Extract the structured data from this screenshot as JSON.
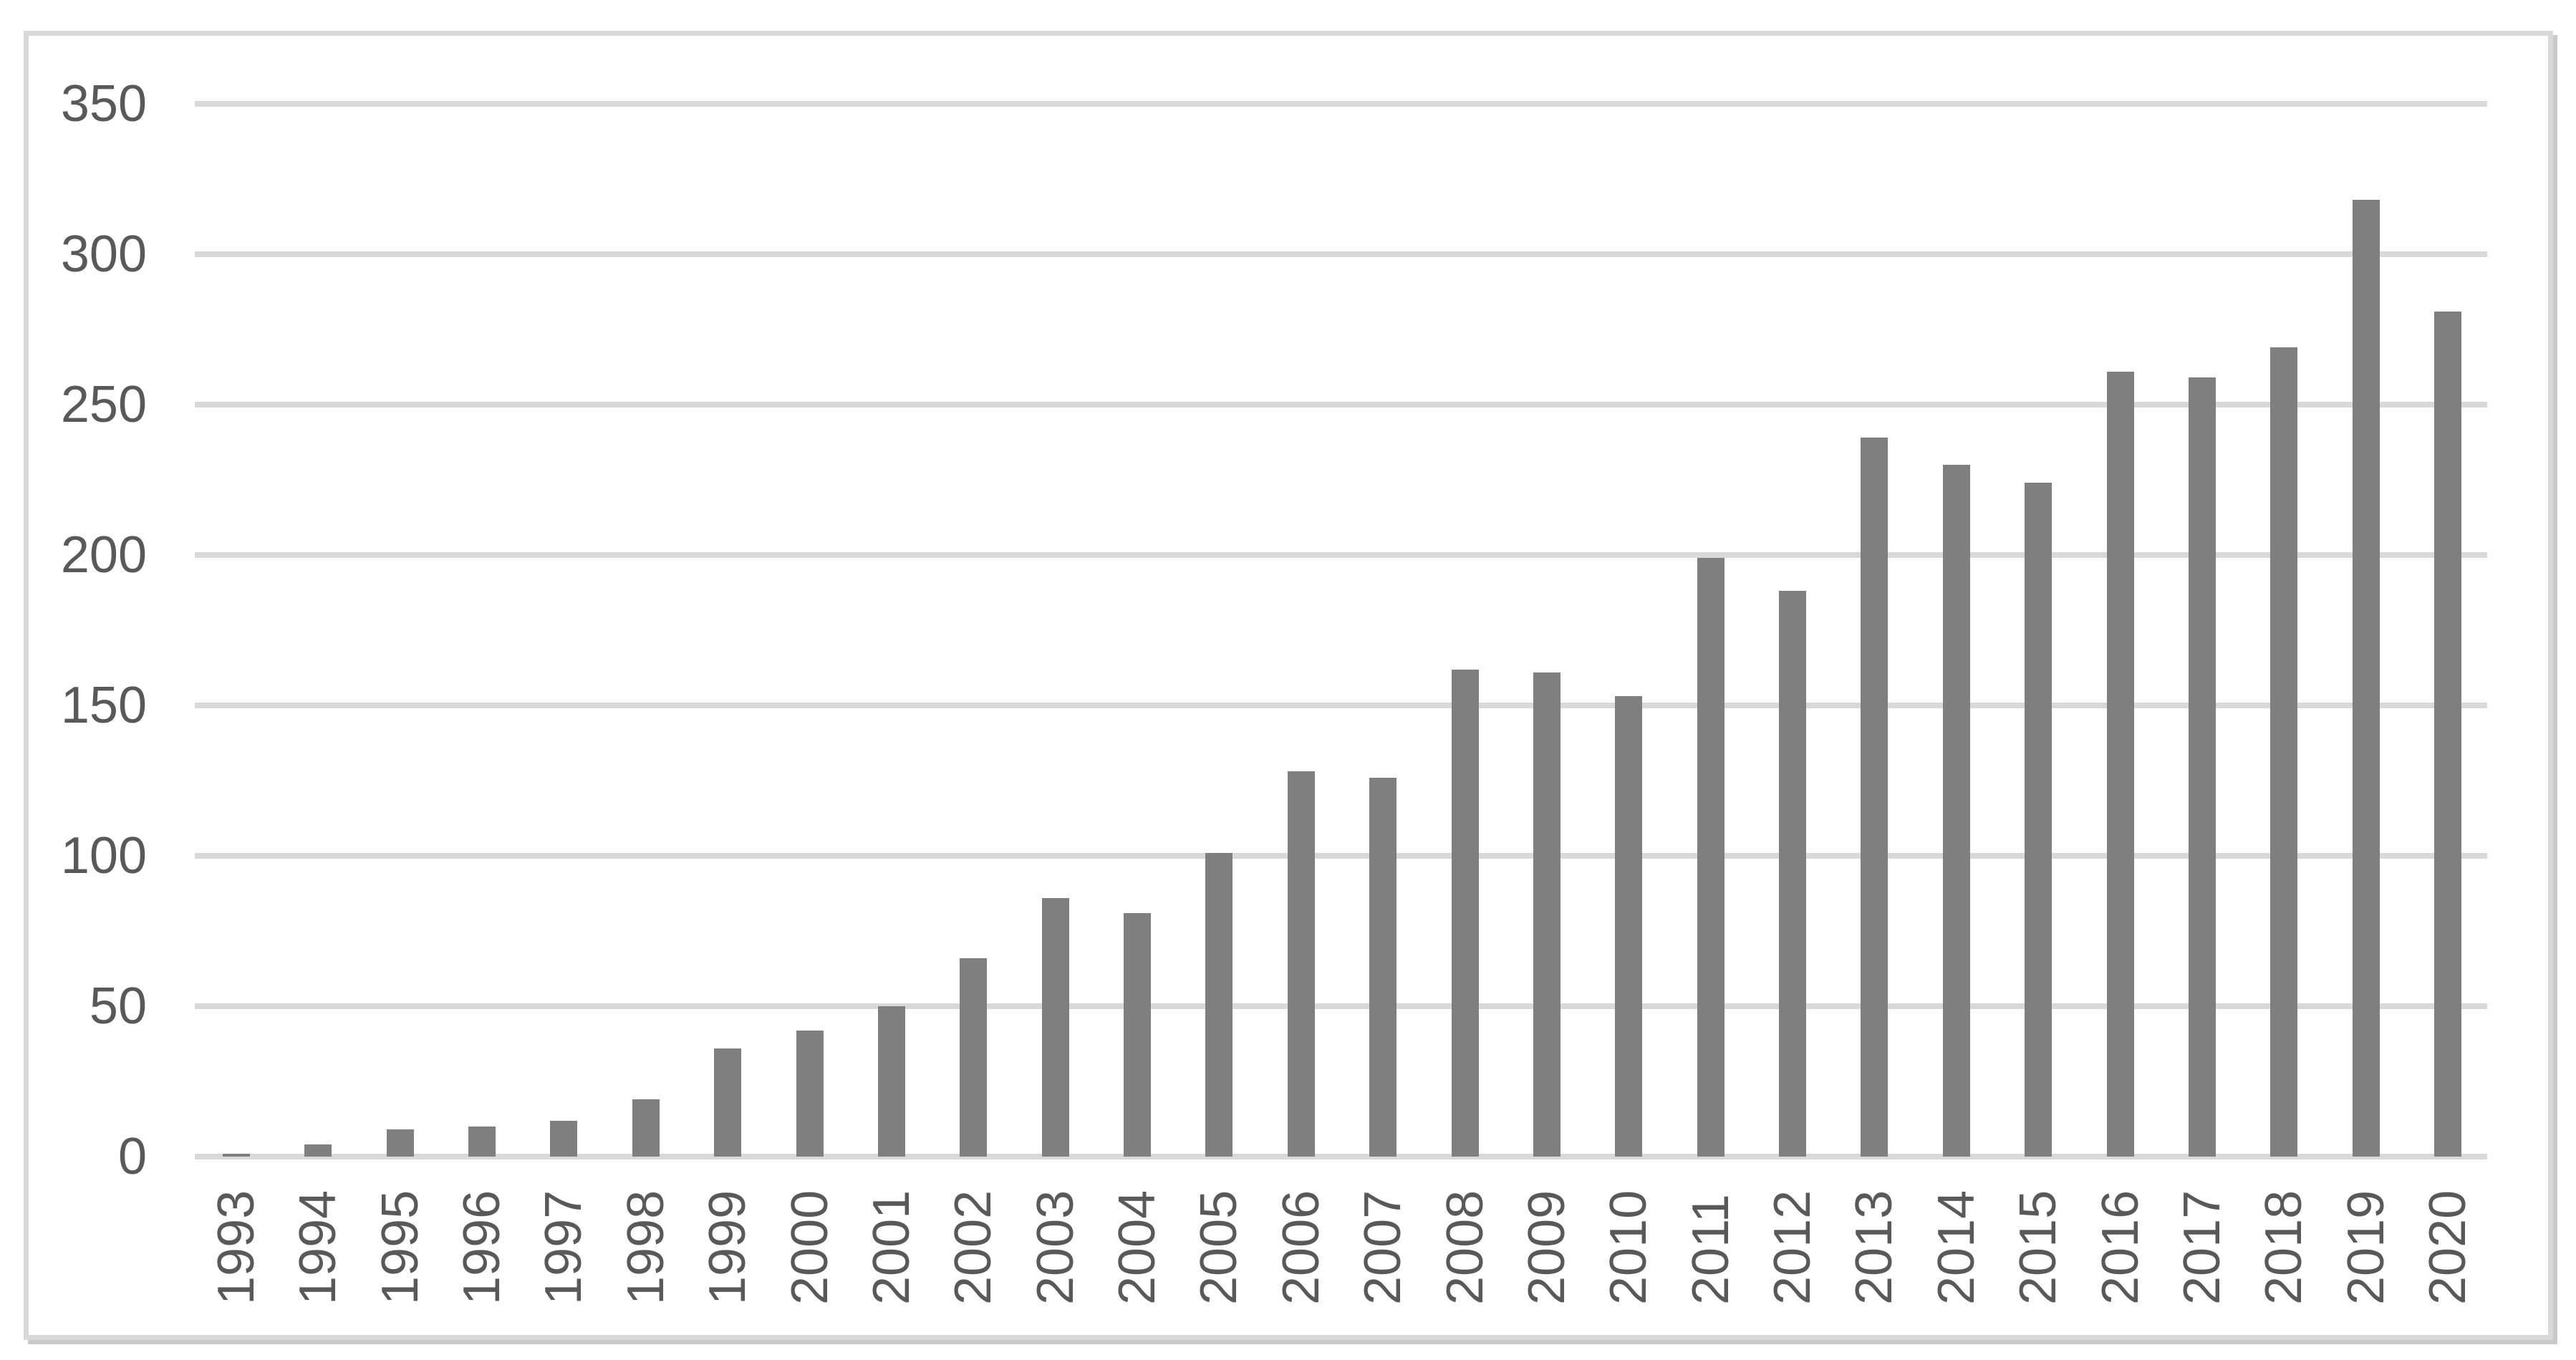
{
  "chart_data": {
    "type": "bar",
    "title": "",
    "xlabel": "",
    "ylabel": "",
    "categories": [
      "1993",
      "1994",
      "1995",
      "1996",
      "1997",
      "1998",
      "1999",
      "2000",
      "2001",
      "2002",
      "2003",
      "2004",
      "2005",
      "2006",
      "2007",
      "2008",
      "2009",
      "2010",
      "2011",
      "2012",
      "2013",
      "2014",
      "2015",
      "2016",
      "2017",
      "2018",
      "2019",
      "2020"
    ],
    "values": [
      1,
      4,
      9,
      10,
      12,
      19,
      36,
      42,
      50,
      66,
      86,
      81,
      101,
      128,
      126,
      162,
      161,
      153,
      199,
      188,
      239,
      230,
      224,
      261,
      259,
      269,
      318,
      281
    ],
    "ylim": [
      0,
      350
    ],
    "ytick_step": 50,
    "ytick_labels": [
      "0",
      "50",
      "100",
      "150",
      "200",
      "250",
      "300",
      "350"
    ],
    "grid": true,
    "legend": false,
    "series_name": "",
    "bar_color": "#7f7f7f",
    "gridline_color": "#d9d9d9",
    "axis_label_color": "#595959",
    "frame_border_color": "#d9d9d9"
  }
}
